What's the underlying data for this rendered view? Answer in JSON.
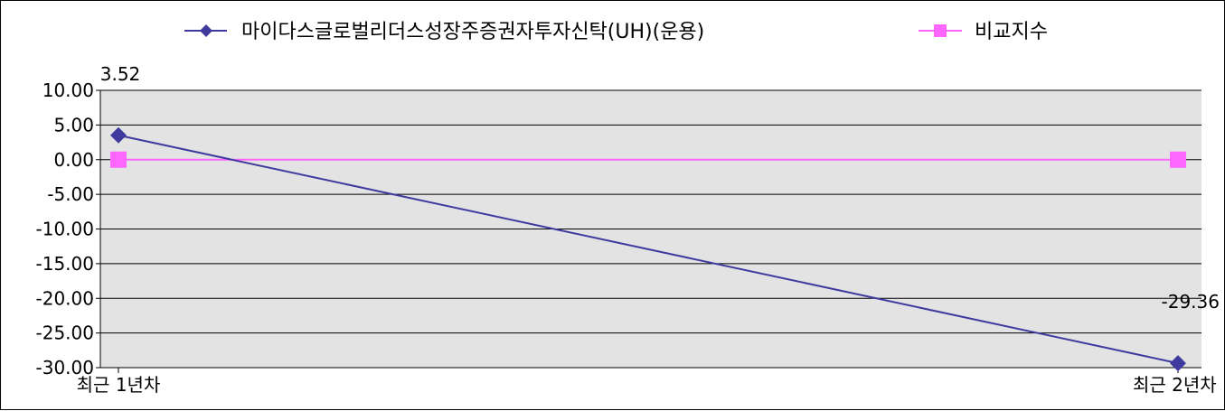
{
  "chart_data": {
    "type": "line",
    "title": "",
    "xlabel": "",
    "ylabel": "",
    "categories": [
      "최근 1년차",
      "최근 2년차"
    ],
    "series": [
      {
        "name": "마이다스글로벌리더스성장주증권자투자신탁(UH)(운용)",
        "values": [
          3.52,
          -29.36
        ],
        "color": "#3F3A9E",
        "marker": "diamond"
      },
      {
        "name": "비교지수",
        "values": [
          0.0,
          0.0
        ],
        "color": "#FF66FF",
        "marker": "square"
      }
    ],
    "data_labels": [
      "3.52",
      "-29.36"
    ],
    "y_ticks": [
      "10.00",
      "5.00",
      "0.00",
      "-5.00",
      "-10.00",
      "-15.00",
      "-20.00",
      "-25.00",
      "-30.00"
    ],
    "ylim": [
      -30,
      10
    ],
    "grid": true,
    "legend_position": "top",
    "plot_background": "#E3E3E3"
  }
}
